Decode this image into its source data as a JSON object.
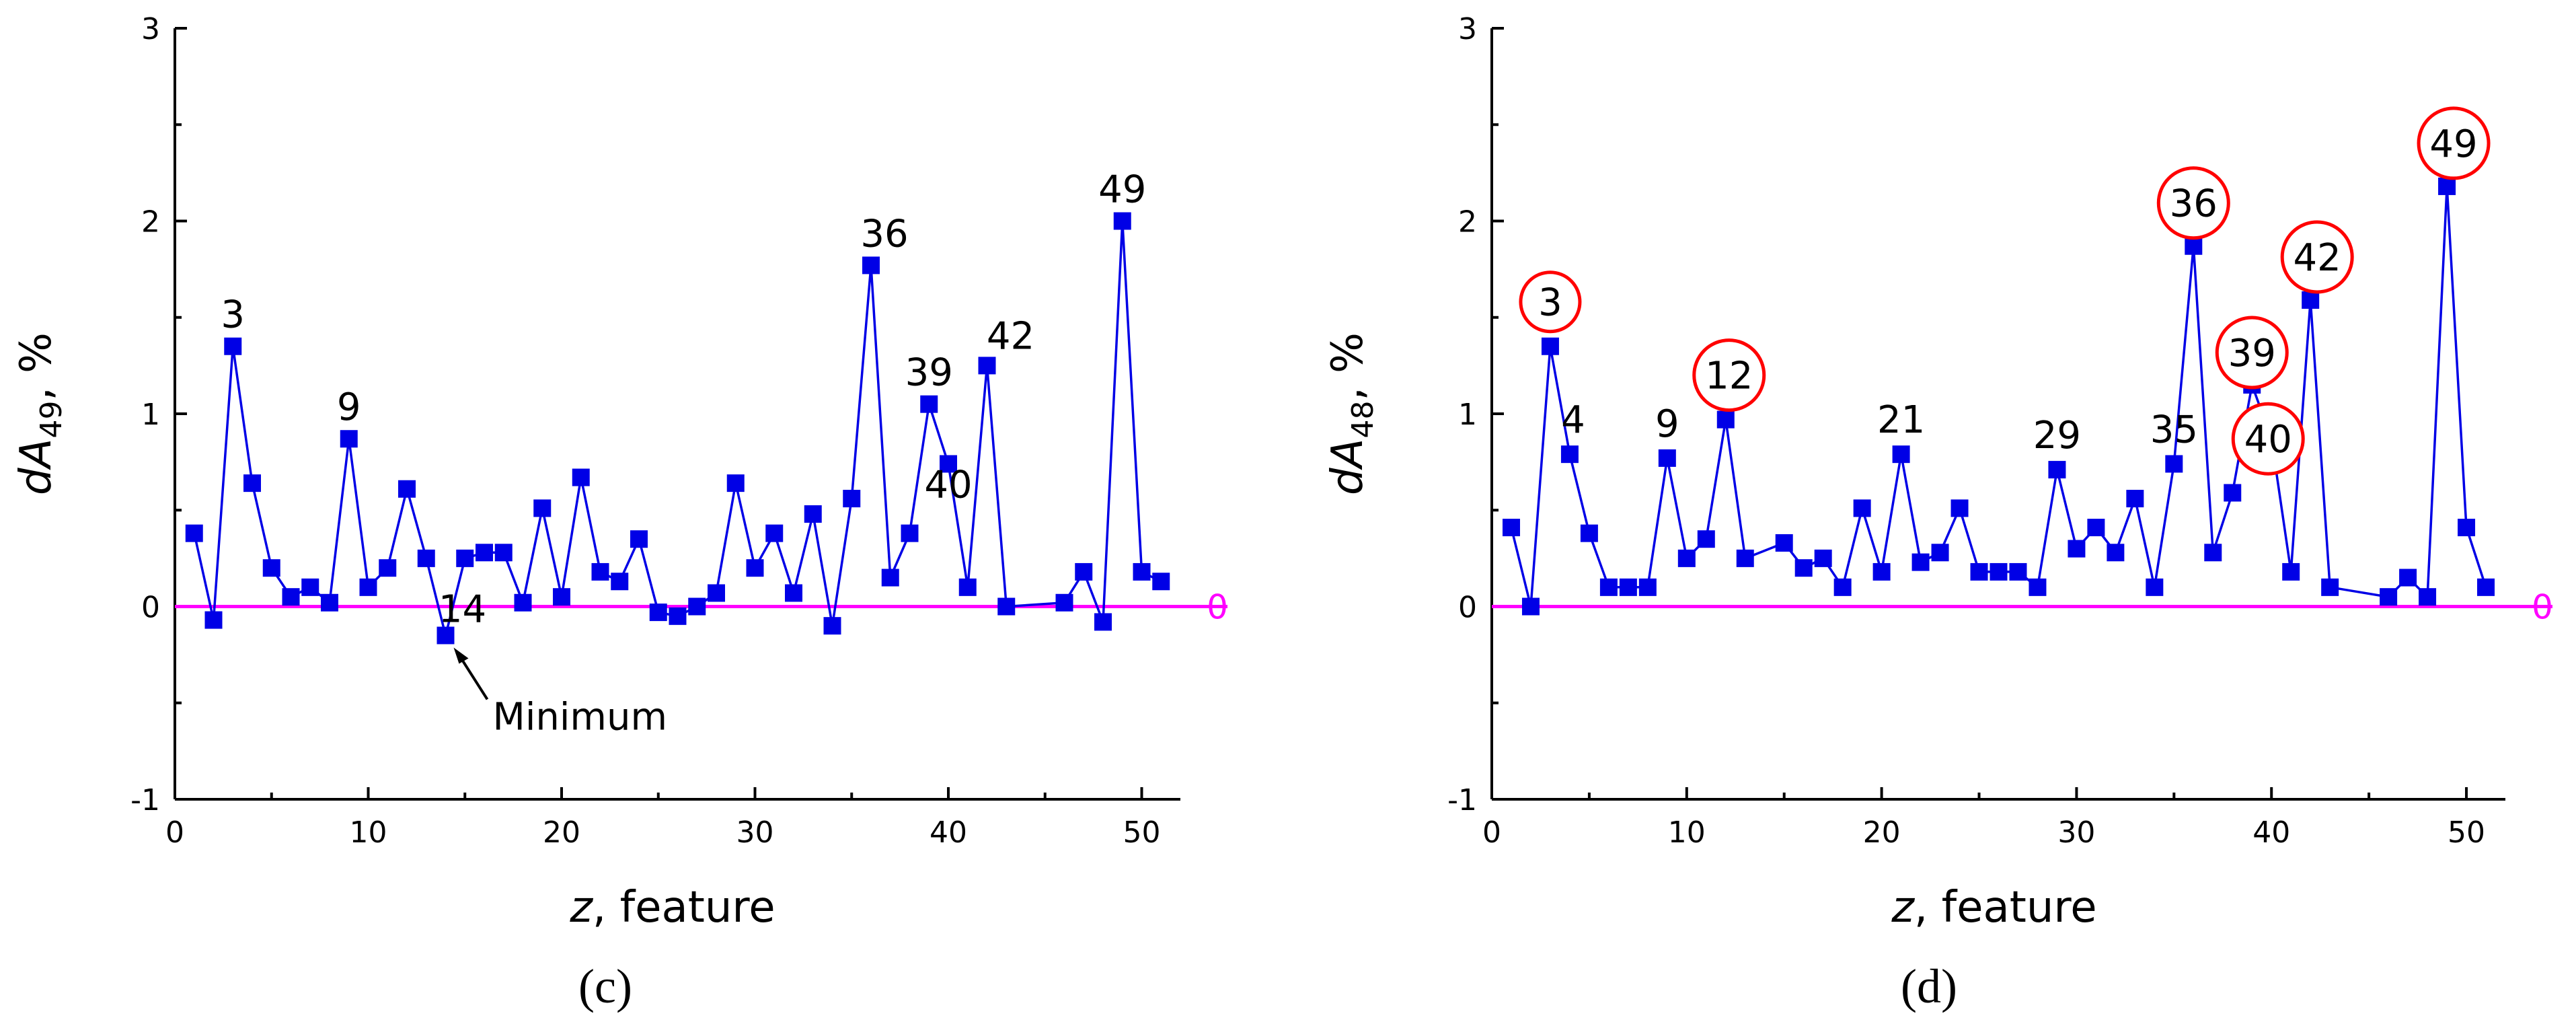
{
  "colors": {
    "series": "#0000e6",
    "zero_line": "#ff00ff",
    "highlight": "#ff0000"
  },
  "chart_data": [
    {
      "type": "line",
      "panel_label": "(c)",
      "ylabel_main": "dA",
      "ylabel_sub": "49",
      "ylabel_unit": ", %",
      "xlabel_var": "z",
      "xlabel_rest": ", feature",
      "xlim": [
        0,
        52
      ],
      "ylim": [
        -1,
        3
      ],
      "xticks": [
        0,
        10,
        20,
        30,
        40,
        50
      ],
      "yticks": [
        -1,
        0,
        1,
        2,
        3
      ],
      "zero_line_label": "0",
      "grid": false,
      "x": [
        1,
        2,
        3,
        4,
        5,
        6,
        7,
        8,
        9,
        10,
        11,
        12,
        13,
        14,
        15,
        16,
        17,
        18,
        19,
        20,
        21,
        22,
        23,
        24,
        25,
        26,
        27,
        28,
        29,
        30,
        31,
        32,
        33,
        34,
        35,
        36,
        37,
        38,
        39,
        40,
        41,
        42,
        43,
        46,
        47,
        48,
        49,
        50,
        51
      ],
      "y": [
        0.38,
        -0.07,
        1.35,
        0.64,
        0.2,
        0.05,
        0.1,
        0.02,
        0.87,
        0.1,
        0.2,
        0.61,
        0.25,
        -0.15,
        0.25,
        0.28,
        0.28,
        0.02,
        0.51,
        0.05,
        0.67,
        0.18,
        0.13,
        0.35,
        -0.03,
        -0.05,
        0.0,
        0.07,
        0.64,
        0.2,
        0.38,
        0.07,
        0.48,
        -0.1,
        0.56,
        1.77,
        0.15,
        0.38,
        1.05,
        0.74,
        0.1,
        1.25,
        0.0,
        0.02,
        0.18,
        -0.08,
        2.0,
        0.18,
        0.13
      ],
      "point_labels": [
        {
          "x": 3,
          "y": 1.35,
          "text": "3"
        },
        {
          "x": 9,
          "y": 0.87,
          "text": "9"
        },
        {
          "x": 14,
          "y": -0.15,
          "text": "14"
        },
        {
          "x": 36,
          "y": 1.77,
          "text": "36"
        },
        {
          "x": 39,
          "y": 1.05,
          "text": "39"
        },
        {
          "x": 40,
          "y": 0.74,
          "text": "40"
        },
        {
          "x": 42,
          "y": 1.25,
          "text": "42"
        },
        {
          "x": 49,
          "y": 2.0,
          "text": "49"
        }
      ],
      "annotation": {
        "x": 14,
        "y": -0.15,
        "text": "Minimum"
      }
    },
    {
      "type": "line",
      "panel_label": "(d)",
      "ylabel_main": "dA",
      "ylabel_sub": "48",
      "ylabel_unit": ", %",
      "xlabel_var": "z",
      "xlabel_rest": ", feature",
      "xlim": [
        0,
        52
      ],
      "ylim": [
        -1,
        3
      ],
      "xticks": [
        0,
        10,
        20,
        30,
        40,
        50
      ],
      "yticks": [
        -1,
        0,
        1,
        2,
        3
      ],
      "zero_line_label": "0",
      "grid": false,
      "x": [
        1,
        2,
        3,
        4,
        5,
        6,
        7,
        8,
        9,
        10,
        11,
        12,
        13,
        15,
        16,
        17,
        18,
        19,
        20,
        21,
        22,
        23,
        24,
        25,
        26,
        27,
        28,
        29,
        30,
        31,
        32,
        33,
        34,
        35,
        36,
        37,
        38,
        39,
        40,
        41,
        42,
        43,
        46,
        47,
        48,
        49,
        50,
        51
      ],
      "y": [
        0.41,
        0.0,
        1.35,
        0.79,
        0.38,
        0.1,
        0.1,
        0.1,
        0.77,
        0.25,
        0.35,
        0.97,
        0.25,
        0.33,
        0.2,
        0.25,
        0.1,
        0.51,
        0.18,
        0.79,
        0.23,
        0.28,
        0.51,
        0.18,
        0.18,
        0.18,
        0.1,
        0.71,
        0.3,
        0.41,
        0.28,
        0.56,
        0.1,
        0.74,
        1.87,
        0.28,
        0.59,
        1.15,
        0.87,
        0.18,
        1.59,
        0.1,
        0.05,
        0.15,
        0.05,
        2.18,
        0.41,
        0.1
      ],
      "point_labels": [
        {
          "x": 3,
          "y": 1.35,
          "text": "3",
          "circled": true
        },
        {
          "x": 4,
          "y": 0.79,
          "text": "4"
        },
        {
          "x": 9,
          "y": 0.77,
          "text": "9"
        },
        {
          "x": 12,
          "y": 0.97,
          "text": "12",
          "circled": true
        },
        {
          "x": 21,
          "y": 0.79,
          "text": "21"
        },
        {
          "x": 29,
          "y": 0.71,
          "text": "29"
        },
        {
          "x": 35,
          "y": 0.74,
          "text": "35"
        },
        {
          "x": 36,
          "y": 1.87,
          "text": "36",
          "circled": true
        },
        {
          "x": 39,
          "y": 1.15,
          "text": "39",
          "circled": true
        },
        {
          "x": 40,
          "y": 0.87,
          "text": "40",
          "circled": true
        },
        {
          "x": 42,
          "y": 1.59,
          "text": "42",
          "circled": true
        },
        {
          "x": 49,
          "y": 2.18,
          "text": "49",
          "circled": true
        }
      ]
    }
  ]
}
